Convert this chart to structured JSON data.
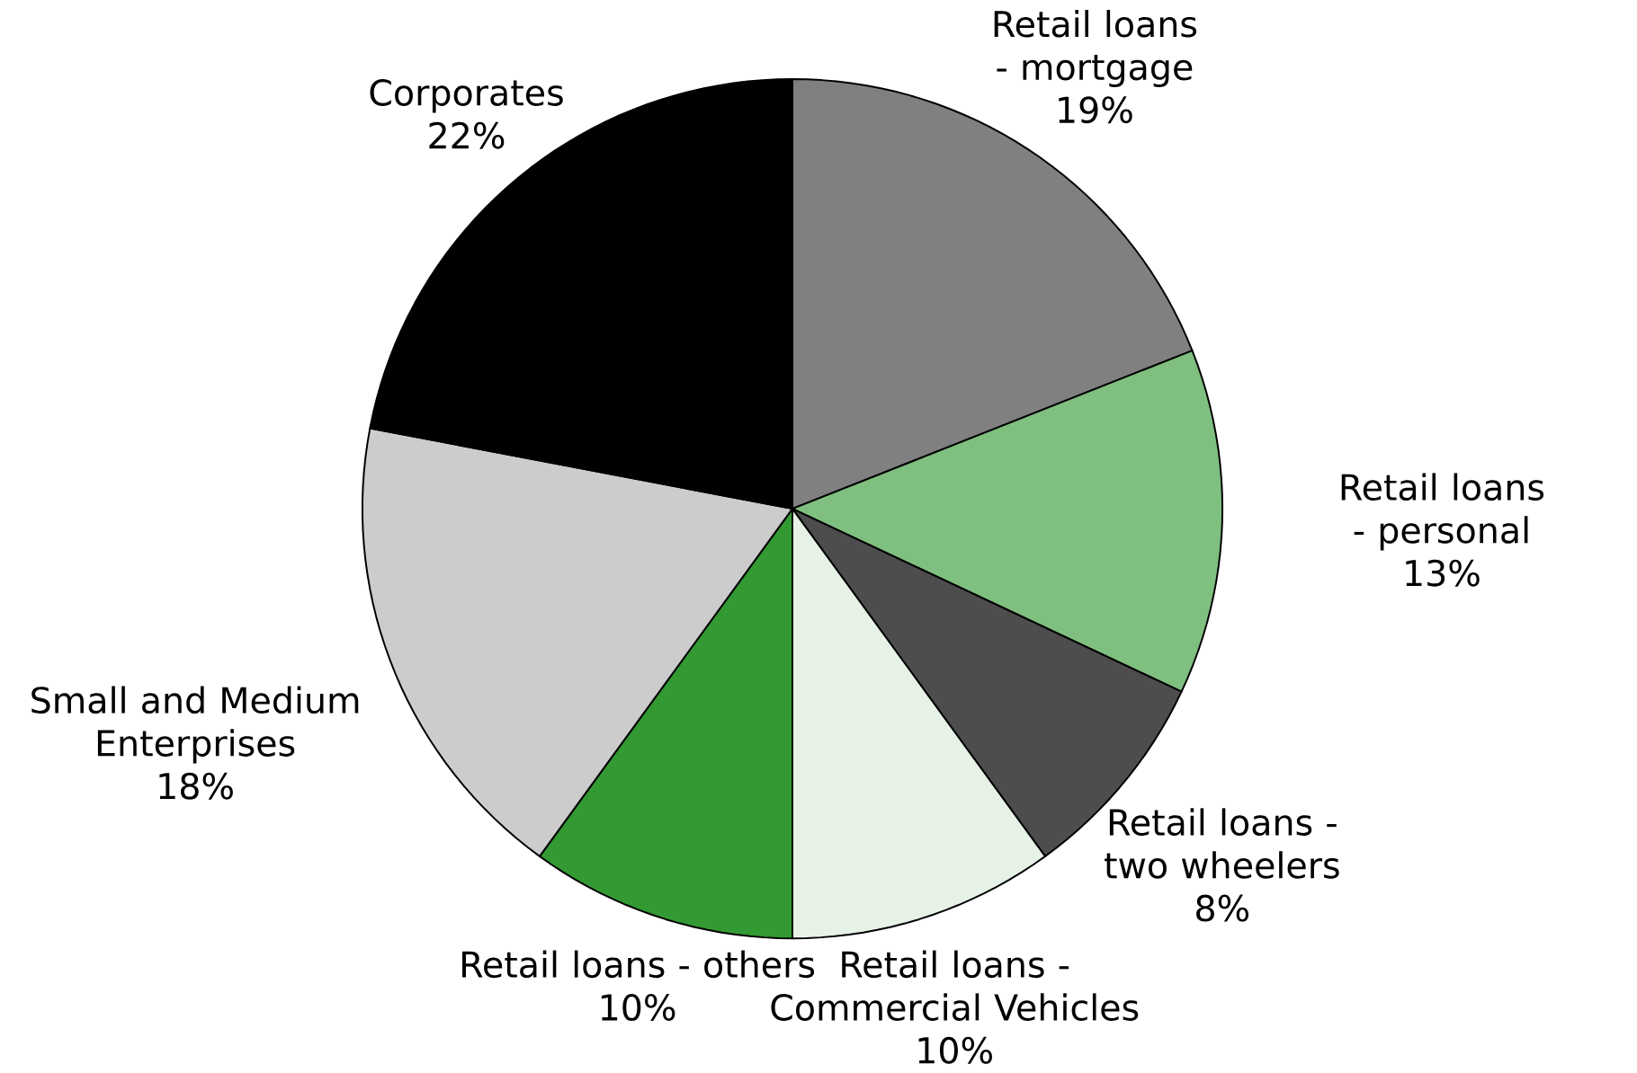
{
  "chart_data": {
    "type": "pie",
    "categories": [
      "Retail loans - mortgage",
      "Retail loans - personal",
      "Retail loans - two wheelers",
      "Retail loans - Commercial Vehicles",
      "Retail loans - others",
      "Small and Medium Enterprises",
      "Corporates"
    ],
    "values": [
      19,
      13,
      8,
      10,
      10,
      18,
      22
    ],
    "value_labels": [
      "19%",
      "13%",
      "8%",
      "10%",
      "10%",
      "18%",
      "22%"
    ],
    "colors": [
      "#808080",
      "#7fbf7f",
      "#4d4d4d",
      "#e6f2e6",
      "#339933",
      "#cccccc",
      "#000000"
    ]
  }
}
